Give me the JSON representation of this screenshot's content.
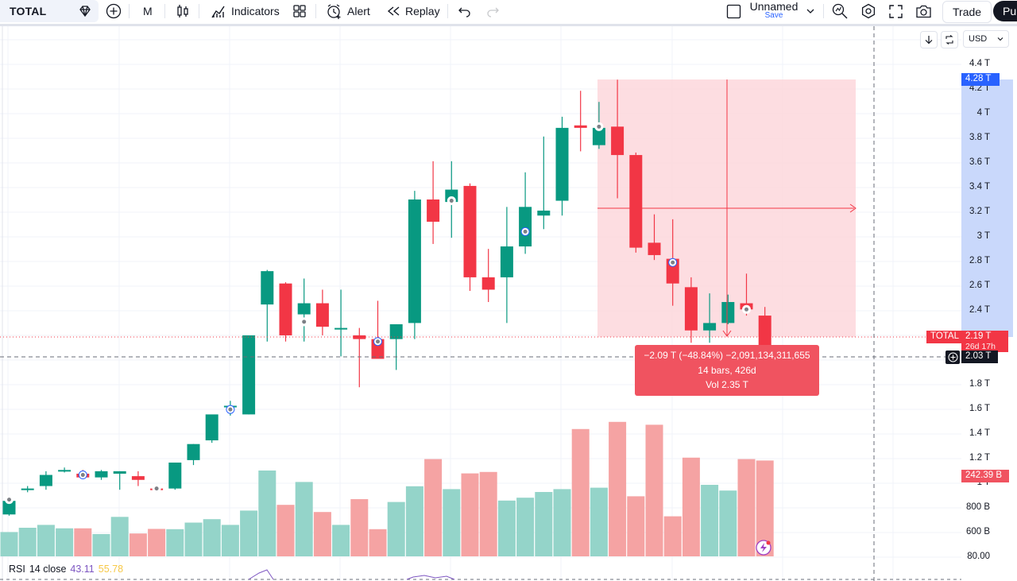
{
  "toolbar": {
    "symbol": "TOTAL",
    "interval": "M",
    "indicators_label": "Indicators",
    "alert_label": "Alert",
    "replay_label": "Replay",
    "layout_name": "Unnamed",
    "layout_save": "Save",
    "trade_label": "Trade",
    "publish_label": "Pub"
  },
  "price_axis": {
    "currency": "USD",
    "ticks": [
      "4.4 T",
      "4.2 T",
      "4 T",
      "3.8 T",
      "3.6 T",
      "3.4 T",
      "3.2 T",
      "3 T",
      "2.8 T",
      "2.6 T",
      "2.4 T",
      "1.8 T",
      "1.6 T",
      "1.4 T",
      "1.2 T",
      "1 T",
      "800 B",
      "600 B",
      "80.00"
    ],
    "range_top_tag": "4.28 T",
    "current_price_tag": "2.19 T",
    "countdown_tag": "26d 17h",
    "crosshair_price_tag": "2.03 T",
    "volume_tag": "242.39 B",
    "symbol_tag": "TOTAL"
  },
  "measure_tooltip": {
    "line1": "−2.09 T (−48.84%) −2,091,134,311,655",
    "line2": "14 bars, 426d",
    "line3": "Vol 2.35 T"
  },
  "rsi": {
    "name": "RSI",
    "params": "14 close",
    "value1": "43.11",
    "value2": "55.78"
  },
  "colors": {
    "up": "#089981",
    "down": "#f23645",
    "up_volume": "#94d4c9",
    "down_volume": "#f5a3a3",
    "measure_fill": "#fcd4da",
    "accent_blue": "#2962ff"
  },
  "chart_data": {
    "type": "candlestick",
    "unit": "USD (T)",
    "candles_ohlc_approx": [
      [
        0.76,
        0.87,
        0.75,
        0.87
      ],
      [
        0.96,
        0.99,
        0.94,
        0.97
      ],
      [
        0.99,
        1.11,
        0.96,
        1.08
      ],
      [
        1.11,
        1.14,
        1.1,
        1.12
      ],
      [
        1.09,
        1.12,
        1.07,
        1.06
      ],
      [
        1.06,
        1.12,
        1.04,
        1.11
      ],
      [
        1.09,
        1.11,
        0.96,
        1.11
      ],
      [
        1.07,
        1.11,
        0.99,
        1.04
      ],
      [
        0.97,
        1.0,
        0.96,
        0.96
      ],
      [
        0.97,
        1.18,
        0.96,
        1.18
      ],
      [
        1.2,
        1.33,
        1.16,
        1.33
      ],
      [
        1.36,
        1.54,
        1.34,
        1.57
      ],
      [
        1.64,
        1.68,
        1.56,
        1.64
      ],
      [
        1.57,
        2.1,
        1.57,
        2.21
      ],
      [
        2.46,
        2.74,
        2.16,
        2.73
      ],
      [
        2.63,
        2.64,
        2.16,
        2.21
      ],
      [
        2.38,
        2.67,
        2.16,
        2.47
      ],
      [
        2.47,
        2.58,
        2.21,
        2.28
      ],
      [
        2.27,
        2.58,
        2.04,
        2.27
      ],
      [
        2.21,
        2.27,
        1.79,
        2.18
      ],
      [
        2.18,
        2.49,
        2.08,
        2.02
      ],
      [
        2.18,
        2.3,
        1.93,
        2.3
      ],
      [
        2.31,
        3.38,
        2.18,
        3.31
      ],
      [
        3.31,
        3.62,
        2.95,
        3.13
      ],
      [
        3.29,
        3.62,
        3.0,
        3.39
      ],
      [
        3.42,
        3.44,
        2.57,
        2.68
      ],
      [
        2.68,
        2.91,
        2.48,
        2.58
      ],
      [
        2.68,
        3.25,
        2.31,
        2.93
      ],
      [
        2.93,
        3.53,
        2.87,
        3.25
      ],
      [
        3.18,
        3.82,
        3.07,
        3.22
      ],
      [
        3.3,
        3.98,
        3.18,
        3.89
      ],
      [
        3.91,
        4.19,
        3.7,
        3.89
      ],
      [
        3.75,
        4.1,
        3.72,
        3.89
      ],
      [
        3.9,
        4.28,
        3.32,
        3.67
      ],
      [
        3.67,
        3.69,
        2.88,
        2.92
      ],
      [
        2.96,
        3.19,
        2.82,
        2.86
      ],
      [
        2.83,
        3.15,
        2.45,
        2.63
      ],
      [
        2.6,
        2.68,
        2.15,
        2.25
      ],
      [
        2.25,
        2.55,
        2.15,
        2.31
      ],
      [
        2.31,
        2.54,
        2.3,
        2.48
      ],
      [
        2.47,
        2.71,
        2.37,
        2.42
      ],
      [
        2.37,
        2.44,
        2.07,
        2.1
      ]
    ],
    "measure_range": {
      "from": 4.28,
      "to": 2.19,
      "change": "−2.09 T",
      "percent": "−48.84%",
      "bars": 14,
      "days": 426,
      "volume": "2.35 T"
    }
  }
}
